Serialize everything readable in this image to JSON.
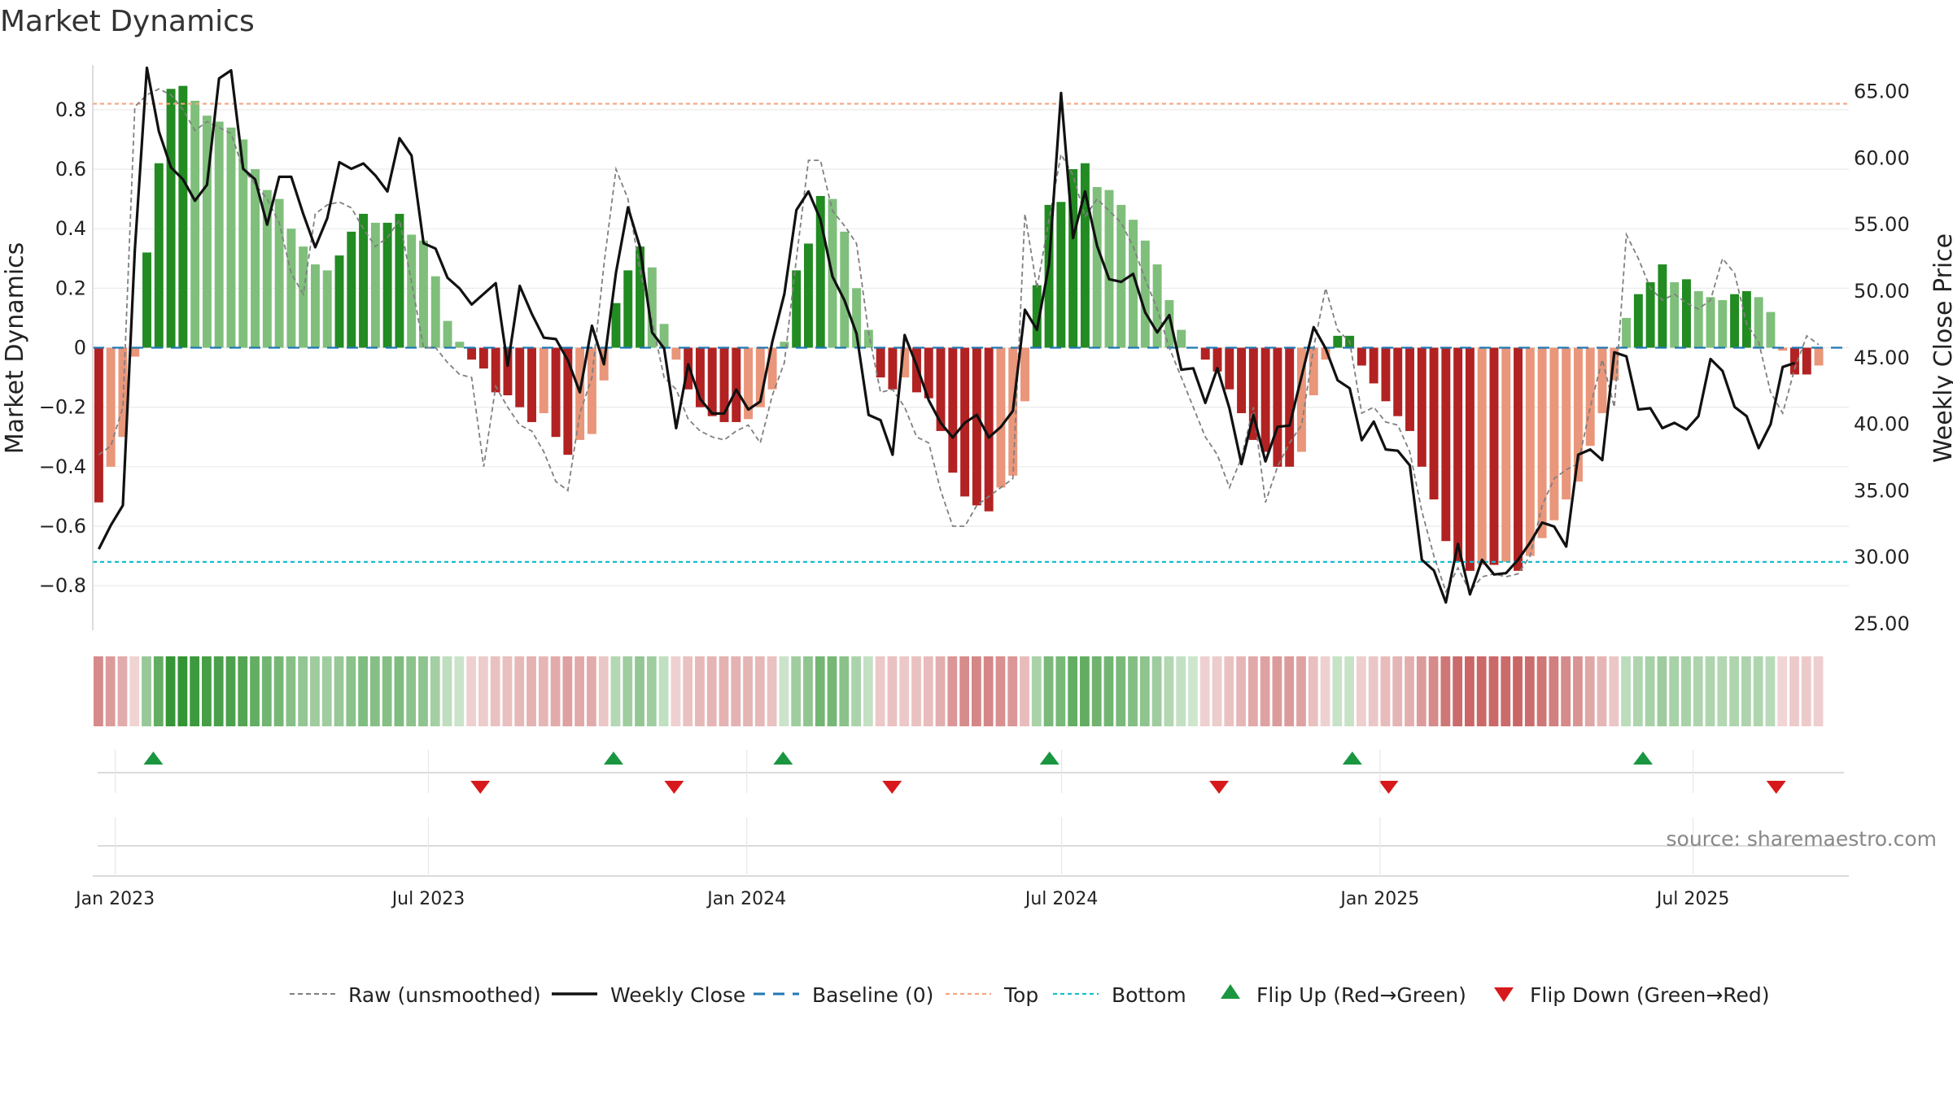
{
  "chart_data": {
    "type": "bar",
    "title": "Market Dynamics",
    "ylabel_left": "Market Dynamics",
    "ylabel_right": "Weekly Close Price",
    "left_ylim": [
      -0.95,
      0.95
    ],
    "right_ylim": [
      24.5,
      67.0
    ],
    "left_ticks": [
      "0.8",
      "0.6",
      "0.4",
      "0.2",
      "0",
      "−0.2",
      "−0.4",
      "−0.6",
      "−0.8"
    ],
    "left_tick_values": [
      0.8,
      0.6,
      0.4,
      0.2,
      0,
      -0.2,
      -0.4,
      -0.6,
      -0.8
    ],
    "right_ticks": [
      "65.00",
      "60.00",
      "55.00",
      "50.00",
      "45.00",
      "40.00",
      "35.00",
      "30.00",
      "25.00"
    ],
    "right_tick_values": [
      65,
      60,
      55,
      50,
      45,
      40,
      35,
      30,
      25
    ],
    "x_ticks": [
      "Jan 2023",
      "Jul 2023",
      "Jan 2024",
      "Jul 2024",
      "Jan 2025",
      "Jul 2025"
    ],
    "x_tick_dates": [
      "2023-01-01",
      "2023-07-01",
      "2024-01-01",
      "2024-07-01",
      "2025-01-01",
      "2025-07-01"
    ],
    "date_range": [
      "2022-12-19",
      "2025-09-29"
    ],
    "weeks": 146,
    "top_level": 0.82,
    "bottom_level": -0.72,
    "baseline": 0,
    "grid": true,
    "legend_position": "bottom-center",
    "colors": {
      "strong_up": "#228b22",
      "weak_up": "#7fbf7b",
      "strong_down": "#b22222",
      "weak_down": "#e9967a",
      "raw": "#808080",
      "close": "#111111",
      "baseline": "#1f77b4",
      "top": "#f4a582",
      "bottom": "#17becf",
      "flip_up": "#1a9641",
      "flip_down": "#d7191c"
    },
    "series": [
      {
        "name": "Market Dynamics",
        "values": [
          -0.52,
          -0.4,
          -0.3,
          -0.03,
          0.32,
          0.62,
          0.87,
          0.88,
          0.83,
          0.78,
          0.76,
          0.74,
          0.7,
          0.6,
          0.53,
          0.5,
          0.4,
          0.34,
          0.28,
          0.26,
          0.31,
          0.39,
          0.45,
          0.42,
          0.42,
          0.45,
          0.38,
          0.36,
          0.24,
          0.09,
          0.02,
          -0.04,
          -0.07,
          -0.15,
          -0.16,
          -0.2,
          -0.25,
          -0.22,
          -0.3,
          -0.36,
          -0.31,
          -0.29,
          -0.11,
          0.15,
          0.26,
          0.34,
          0.27,
          0.08,
          -0.04,
          -0.14,
          -0.2,
          -0.23,
          -0.25,
          -0.25,
          -0.24,
          -0.2,
          -0.14,
          0.02,
          0.26,
          0.35,
          0.51,
          0.5,
          0.39,
          0.2,
          0.06,
          -0.1,
          -0.14,
          -0.1,
          -0.15,
          -0.17,
          -0.28,
          -0.42,
          -0.5,
          -0.53,
          -0.55,
          -0.47,
          -0.43,
          -0.18,
          0.21,
          0.48,
          0.49,
          0.6,
          0.62,
          0.54,
          0.53,
          0.48,
          0.43,
          0.36,
          0.28,
          0.16,
          0.06,
          0.0,
          -0.04,
          -0.08,
          -0.14,
          -0.22,
          -0.31,
          -0.35,
          -0.4,
          -0.4,
          -0.35,
          -0.16,
          -0.04,
          0.04,
          0.04,
          -0.06,
          -0.12,
          -0.18,
          -0.23,
          -0.28,
          -0.4,
          -0.51,
          -0.65,
          -0.72,
          -0.75,
          -0.73,
          -0.73,
          -0.72,
          -0.75,
          -0.7,
          -0.64,
          -0.58,
          -0.51,
          -0.45,
          -0.33,
          -0.22,
          -0.11,
          0.1,
          0.18,
          0.22,
          0.28,
          0.22,
          0.23,
          0.19,
          0.17,
          0.16,
          0.18,
          0.19,
          0.17,
          0.12,
          -0.01,
          -0.09,
          -0.09,
          -0.06
        ]
      },
      {
        "name": "Raw (unsmoothed)",
        "values": [
          -0.36,
          -0.33,
          -0.2,
          0.81,
          0.85,
          0.87,
          0.85,
          0.8,
          0.73,
          0.76,
          0.74,
          0.72,
          0.6,
          0.55,
          0.5,
          0.42,
          0.25,
          0.18,
          0.45,
          0.48,
          0.49,
          0.47,
          0.4,
          0.34,
          0.37,
          0.43,
          0.22,
          0.0,
          0.0,
          -0.05,
          -0.09,
          -0.1,
          -0.4,
          -0.13,
          -0.2,
          -0.26,
          -0.28,
          -0.35,
          -0.45,
          -0.48,
          -0.22,
          -0.1,
          0.28,
          0.6,
          0.5,
          0.26,
          0.09,
          -0.1,
          -0.14,
          -0.24,
          -0.28,
          -0.3,
          -0.31,
          -0.28,
          -0.26,
          -0.32,
          -0.16,
          -0.05,
          0.3,
          0.63,
          0.63,
          0.46,
          0.41,
          0.35,
          0.05,
          -0.15,
          -0.14,
          -0.2,
          -0.3,
          -0.32,
          -0.48,
          -0.6,
          -0.6,
          -0.53,
          -0.5,
          -0.47,
          -0.44,
          0.45,
          0.2,
          0.43,
          0.65,
          0.58,
          0.44,
          0.5,
          0.46,
          0.42,
          0.34,
          0.23,
          0.13,
          0.0,
          -0.1,
          -0.2,
          -0.3,
          -0.36,
          -0.47,
          -0.37,
          -0.2,
          -0.52,
          -0.4,
          -0.32,
          -0.26,
          0.0,
          0.2,
          0.06,
          0.02,
          -0.22,
          -0.2,
          -0.25,
          -0.26,
          -0.35,
          -0.55,
          -0.7,
          -0.82,
          -0.74,
          -0.82,
          -0.77,
          -0.76,
          -0.77,
          -0.76,
          -0.7,
          -0.53,
          -0.44,
          -0.41,
          -0.39,
          -0.2,
          -0.04,
          -0.2,
          0.38,
          0.3,
          0.2,
          0.16,
          0.18,
          0.15,
          0.13,
          0.16,
          0.3,
          0.25,
          0.08,
          0.02,
          -0.15,
          -0.22,
          -0.07,
          0.04,
          0.01
        ]
      },
      {
        "name": "Weekly Close",
        "values": [
          30.6,
          32.4,
          33.9,
          53.1,
          66.8,
          62.0,
          59.3,
          58.4,
          56.8,
          58.0,
          66.0,
          66.6,
          59.2,
          58.4,
          55.0,
          58.6,
          58.6,
          55.8,
          53.3,
          55.5,
          59.7,
          59.2,
          59.6,
          58.7,
          57.5,
          61.5,
          60.2,
          53.6,
          53.2,
          51.0,
          50.2,
          49.0,
          49.8,
          50.6,
          44.4,
          50.4,
          48.3,
          46.5,
          46.4,
          44.8,
          42.4,
          47.4,
          44.5,
          51.4,
          56.3,
          53.3,
          46.9,
          45.7,
          39.7,
          44.5,
          41.9,
          40.8,
          40.8,
          42.6,
          41.1,
          41.7,
          46.2,
          49.8,
          56.1,
          57.5,
          55.4,
          51.1,
          49.3,
          46.8,
          40.7,
          40.3,
          37.7,
          46.7,
          44.4,
          41.8,
          40.1,
          39.0,
          40.1,
          40.7,
          39.0,
          39.8,
          41.0,
          48.6,
          47.1,
          52.0,
          64.9,
          54.0,
          57.5,
          53.4,
          50.9,
          50.7,
          51.3,
          48.4,
          46.9,
          48.2,
          44.1,
          44.2,
          41.6,
          44.2,
          41.2,
          37.0,
          40.7,
          37.2,
          39.8,
          39.9,
          43.6,
          47.3,
          45.7,
          43.3,
          42.7,
          38.8,
          40.2,
          38.1,
          38.0,
          36.9,
          29.8,
          29.0,
          26.6,
          31.0,
          27.2,
          29.8,
          28.7,
          28.8,
          29.8,
          31.1,
          32.6,
          32.3,
          30.8,
          37.7,
          38.1,
          37.3,
          45.4,
          45.1,
          41.1,
          41.2,
          39.7,
          40.1,
          39.6,
          40.6,
          44.9,
          44.0,
          41.3,
          40.6,
          38.2,
          40.0,
          44.3,
          44.6
        ]
      }
    ],
    "flip_up_dates": [
      "2023-01-23",
      "2023-10-16",
      "2024-01-22",
      "2024-06-24",
      "2024-12-16",
      "2025-06-02"
    ],
    "flip_down_dates": [
      "2023-07-31",
      "2023-11-20",
      "2024-03-25",
      "2024-09-30",
      "2025-01-06",
      "2025-08-18"
    ],
    "legend": [
      {
        "label": "Raw (unsmoothed)",
        "kind": "dash-gray"
      },
      {
        "label": "Weekly Close",
        "kind": "solid-black"
      },
      {
        "label": "Baseline (0)",
        "kind": "dash-blue"
      },
      {
        "label": "Top",
        "kind": "dot-orange"
      },
      {
        "label": "Bottom",
        "kind": "dot-cyan"
      },
      {
        "label": "Flip Up (Red→Green)",
        "kind": "tri-up"
      },
      {
        "label": "Flip Down (Green→Red)",
        "kind": "tri-down"
      }
    ],
    "source": "source: sharemaestro.com"
  }
}
